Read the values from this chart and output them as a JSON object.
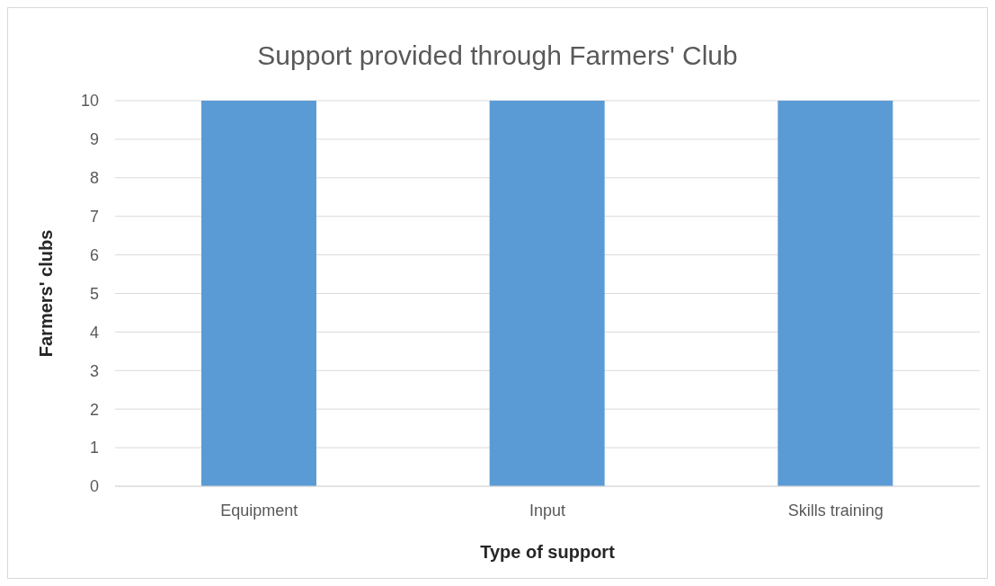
{
  "chart_data": {
    "type": "bar",
    "title": "Support provided through Farmers' Club",
    "xlabel": "Type of support",
    "ylabel": "Farmers' clubs",
    "categories": [
      "Equipment",
      "Input",
      "Skills training"
    ],
    "values": [
      10,
      10,
      10
    ],
    "color": "#5b9bd5",
    "ylim": [
      0,
      10
    ],
    "yticks": [
      0,
      1,
      2,
      3,
      4,
      5,
      6,
      7,
      8,
      9,
      10
    ],
    "grid": "y",
    "legend": false
  }
}
